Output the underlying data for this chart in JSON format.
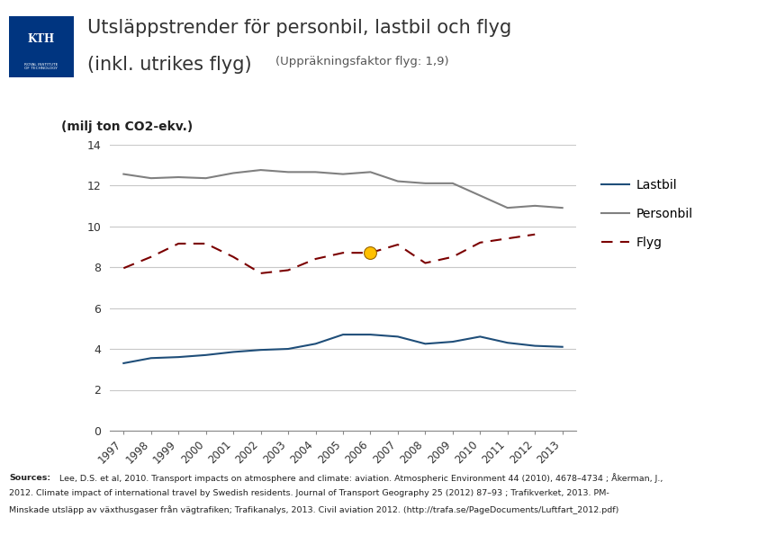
{
  "title_line1": "Utsläppstrender för personbil, lastbil och flyg",
  "title_line2": "(inkl. utrikes flyg)",
  "title_sub": "(Uppräkningsfaktor flyg: 1,9)",
  "ylabel": "(milj ton CO2-ekv.)",
  "years": [
    1997,
    1998,
    1999,
    2000,
    2001,
    2002,
    2003,
    2004,
    2005,
    2006,
    2007,
    2008,
    2009,
    2010,
    2011,
    2012,
    2013
  ],
  "lastbil": [
    3.3,
    3.55,
    3.6,
    3.7,
    3.85,
    3.95,
    4.0,
    4.25,
    4.7,
    4.7,
    4.6,
    4.25,
    4.35,
    4.6,
    4.3,
    4.15,
    4.1
  ],
  "personbil": [
    12.55,
    12.35,
    12.4,
    12.35,
    12.6,
    12.75,
    12.65,
    12.65,
    12.55,
    12.65,
    12.2,
    12.1,
    12.1,
    11.5,
    10.9,
    11.0,
    10.9
  ],
  "flyg": [
    7.95,
    8.5,
    9.15,
    9.15,
    8.5,
    7.7,
    7.85,
    8.4,
    8.7,
    8.7,
    9.1,
    8.2,
    8.5,
    9.2,
    9.4,
    9.6,
    null
  ],
  "flyg_highlight_year": 2006,
  "flyg_highlight_value": 8.7,
  "lastbil_color": "#1f4e79",
  "personbil_color": "#808080",
  "flyg_color": "#7b0000",
  "highlight_color": "#ffc000",
  "highlight_edge_color": "#996600",
  "ylim": [
    0,
    14
  ],
  "yticks": [
    0,
    2,
    4,
    6,
    8,
    10,
    12,
    14
  ],
  "sources_bold": "Sources:",
  "sources_rest": " Lee, D.S. et al, 2010. Transport impacts on atmosphere and climate: aviation. Atmospheric Environment 44 (2010), 4678–4734 ; Åkerman, J., 2012. Climate impact of international travel by Swedish residents. Journal of Transport Geography 25 (2012) 87–93 ; Trafikverket, 2013. PM-Minskade utsläpp av växthusgaser från vägtrafiken; Trafikanalys, 2013. Civil aviation 2012. (http://trafa.se/PageDocuments/Luftfart_2012.pdf)",
  "bg_color": "#ffffff",
  "grid_color": "#c8c8c8",
  "logo_color": "#003580",
  "title_color": "#333333",
  "sources_line2": "2012. Climate impact of international travel by Swedish residents. Journal of Transport Geography 25 (2012) 87–93 ; Trafikverket, 2013. PM-",
  "sources_line3": "Minskade utsläpp av växthusgaser från vägtrafiken; Trafikanalys, 2013. Civil aviation 2012. (http://trafa.se/PageDocuments/Luftfart_2012.pdf)"
}
